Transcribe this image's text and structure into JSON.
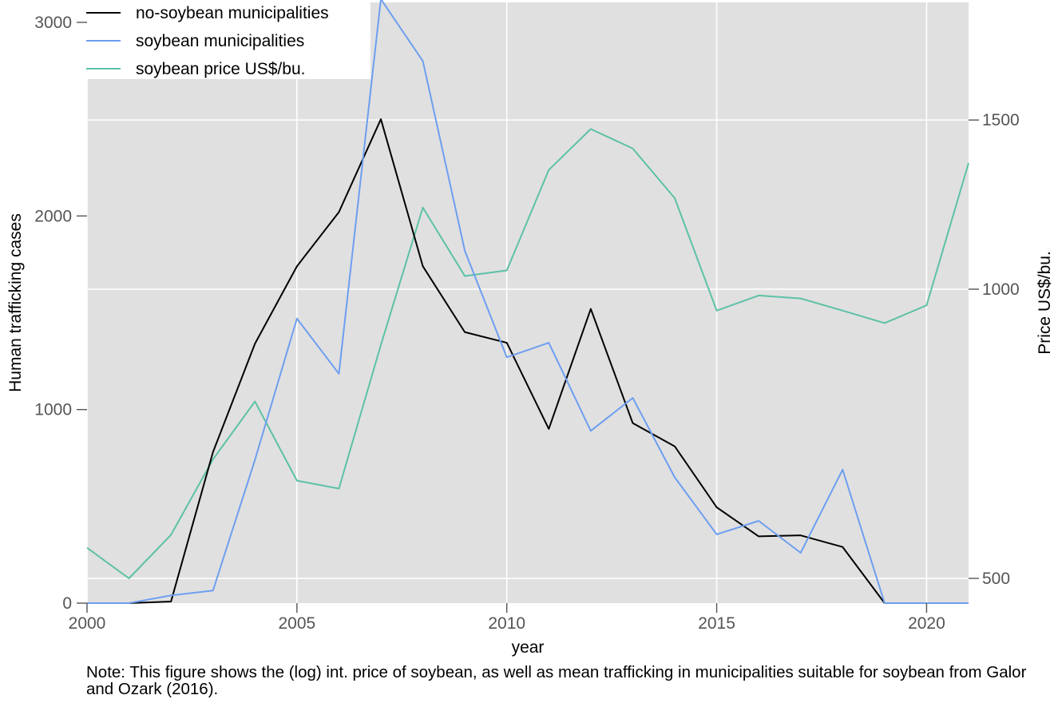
{
  "chart_data": {
    "type": "line",
    "x": [
      2000,
      2001,
      2002,
      2003,
      2004,
      2005,
      2006,
      2007,
      2008,
      2009,
      2010,
      2011,
      2012,
      2013,
      2014,
      2015,
      2016,
      2017,
      2018,
      2019,
      2020,
      2021
    ],
    "xlabel": "year",
    "ylabel": "Human trafficking cases",
    "ylabel_right": "Price US$/bu.",
    "xlim": [
      2000,
      2021
    ],
    "ylim": [
      0,
      3000
    ],
    "ylim_right": [
      500,
      1500
    ],
    "x_ticks": [
      "2000",
      "2005",
      "2010",
      "2015",
      "2020"
    ],
    "y_ticks": [
      "0",
      "1000",
      "2000",
      "3000"
    ],
    "y_ticks_right": [
      "500",
      "1000",
      "1500"
    ],
    "grid": true,
    "legend_placement": "top-left",
    "series": [
      {
        "name": "no-soybean municipalities",
        "axis": "left",
        "color": "#000000",
        "values": [
          0,
          0,
          8,
          780,
          1340,
          1740,
          2020,
          2500,
          1740,
          1400,
          1345,
          900,
          1520,
          930,
          810,
          495,
          345,
          350,
          290,
          0,
          0,
          0
        ]
      },
      {
        "name": "soybean municipalities",
        "axis": "left",
        "color": "#6d9ef0",
        "values": [
          0,
          0,
          40,
          65,
          740,
          1470,
          1185,
          3120,
          2800,
          1820,
          1270,
          1345,
          890,
          1060,
          650,
          355,
          425,
          260,
          690,
          0,
          0,
          0
        ]
      },
      {
        "name": "soybean price US$/bu.",
        "axis": "right",
        "color": "#5cc1a6",
        "values": [
          538,
          500,
          555,
          665,
          764,
          632,
          620,
          875,
          1216,
          1032,
          1046,
          1331,
          1468,
          1401,
          1244,
          950,
          985,
          978,
          950,
          922,
          962,
          1353
        ]
      }
    ]
  },
  "note": {
    "text": "Note: This figure shows the (log) int. price of soybean, as well as mean trafficking in municipalities suitable for soybean from Galor and Ozark (2016)."
  }
}
